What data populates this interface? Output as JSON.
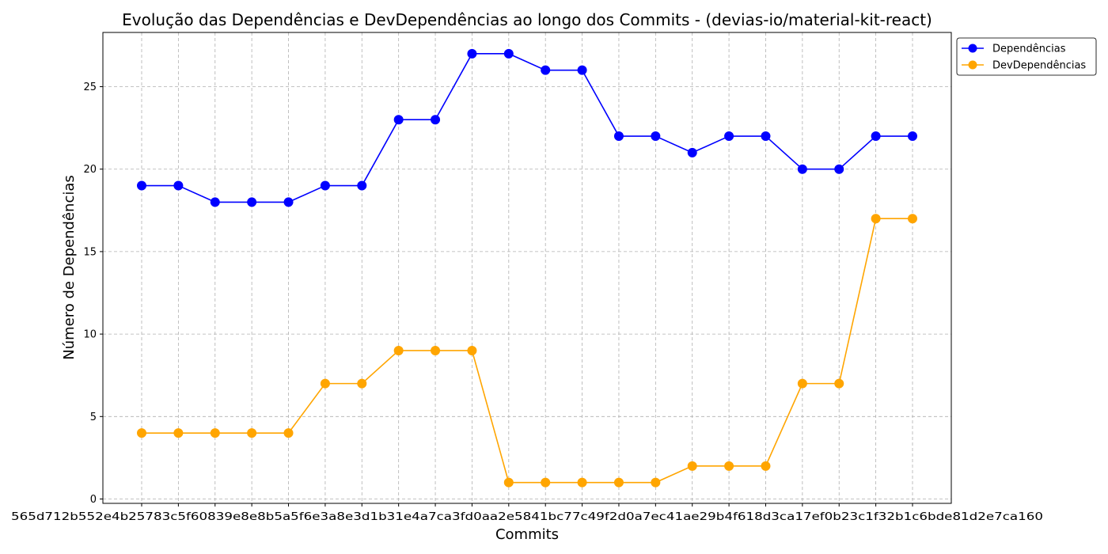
{
  "chart_data": {
    "type": "line",
    "title": "Evolução das Dependências e DevDependências ao longo dos Commits - (devias-io/material-kit-react)",
    "xlabel": "Commits",
    "ylabel": "Número de Dependências",
    "ylim": [
      0,
      28.2
    ],
    "yticks": [
      0,
      5,
      10,
      15,
      20,
      25
    ],
    "grid": true,
    "legend_position": "outside-top-right",
    "categories": [
      "565d712",
      "552e4",
      "b2578",
      "6083",
      "5a5f",
      "a8e3",
      "b31e",
      "ca3f",
      "d0aa",
      "2e58",
      "41bc",
      "77c4",
      "9f2d",
      "0a7e",
      "c41a",
      "e29b",
      "4f61",
      "8d3c",
      "a17e",
      "f0b2",
      "3c1f",
      "cca160"
    ],
    "x_tick_text": "565d712b552e4b25783c5f60839e8e8b5a5f6e3a8e3d1b31e4a7ca3fd0aa2e5841bc77c49f2d0a7ec41ae29b4f618d3ca17ef0b23c1f32b1c6bde81d2e7ca160",
    "series": [
      {
        "name": "Dependências",
        "color": "#0000ff",
        "values": [
          19,
          19,
          18,
          18,
          18,
          19,
          19,
          23,
          23,
          27,
          27,
          26,
          26,
          22,
          22,
          21,
          22,
          22,
          20,
          20,
          22,
          22
        ]
      },
      {
        "name": "DevDependências",
        "color": "#ffa500",
        "values": [
          4,
          4,
          4,
          4,
          4,
          7,
          7,
          9,
          9,
          9,
          1,
          1,
          1,
          1,
          1,
          2,
          2,
          2,
          7,
          7,
          17,
          17
        ]
      }
    ]
  }
}
